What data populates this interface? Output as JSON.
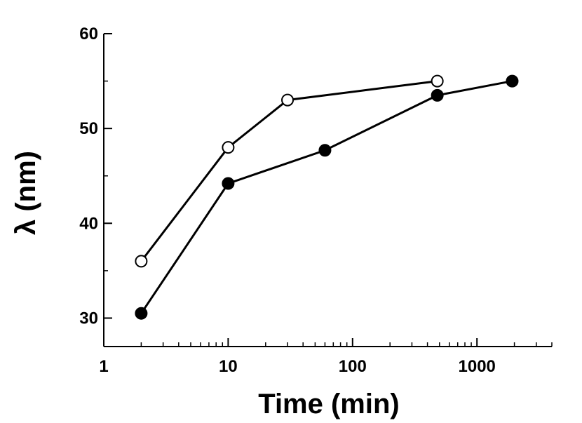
{
  "chart_data": {
    "type": "line",
    "title": "",
    "xlabel": "Time (min)",
    "ylabel": "λ (nm)",
    "x_scale": "log",
    "xlim": [
      1,
      4000
    ],
    "ylim": [
      27,
      60
    ],
    "x_ticks": [
      {
        "value": 1,
        "label": "1"
      },
      {
        "value": 10,
        "label": "10"
      },
      {
        "value": 100,
        "label": "100"
      },
      {
        "value": 1000,
        "label": "1000"
      }
    ],
    "y_ticks": [
      {
        "value": 30,
        "label": "30"
      },
      {
        "value": 40,
        "label": "40"
      },
      {
        "value": 50,
        "label": "50"
      },
      {
        "value": 60,
        "label": "60"
      }
    ],
    "grid": false,
    "legend": "none",
    "series": [
      {
        "marker": "open-circle",
        "color": "#000000",
        "points": [
          {
            "x": 2,
            "y": 36
          },
          {
            "x": 10,
            "y": 48
          },
          {
            "x": 30,
            "y": 53
          },
          {
            "x": 480,
            "y": 55
          }
        ]
      },
      {
        "marker": "filled-circle",
        "color": "#000000",
        "points": [
          {
            "x": 2,
            "y": 30.5
          },
          {
            "x": 10,
            "y": 44.2
          },
          {
            "x": 60,
            "y": 47.7
          },
          {
            "x": 480,
            "y": 53.5
          },
          {
            "x": 1920,
            "y": 55
          }
        ]
      }
    ]
  }
}
